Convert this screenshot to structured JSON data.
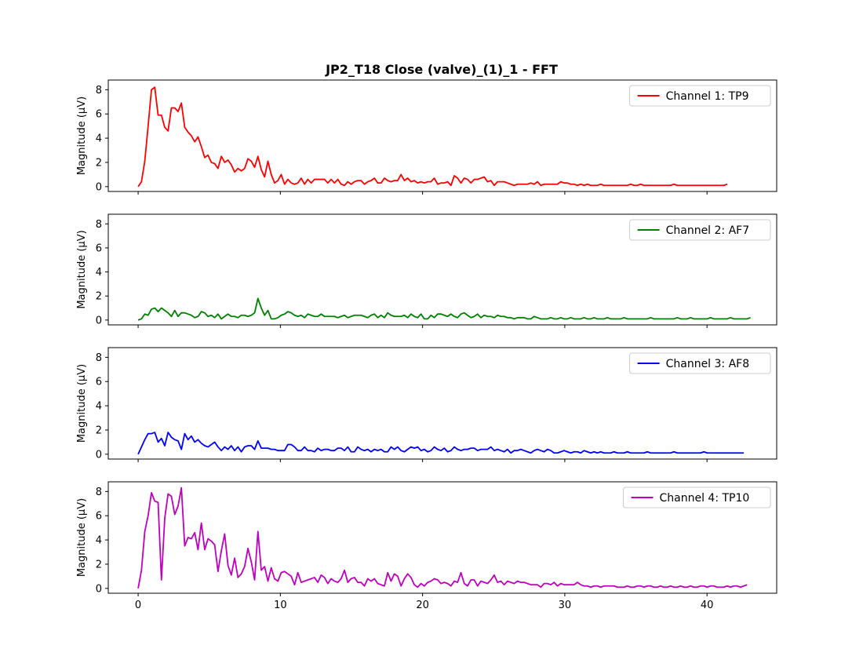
{
  "chart_data": {
    "type": "line",
    "title": "JP2_T18 Close (valve)_(1)_1 - FFT",
    "shared_x": true,
    "xlim": [
      -2.1,
      44.9
    ],
    "ylim": [
      -0.4,
      8.8
    ],
    "x_ticks": [
      0,
      10,
      20,
      30,
      40
    ],
    "y_ticks": [
      0,
      2,
      4,
      6,
      8
    ],
    "grid": false,
    "legend_position": "upper right",
    "x_step": 0.234,
    "panels": [
      {
        "ylabel": "Magnitude (μV)",
        "series": [
          {
            "name": "Channel 1: TP9",
            "color": "#ff0000",
            "values": [
              0.0,
              0.4,
              2.1,
              5.0,
              8.0,
              8.2,
              5.9,
              5.9,
              4.9,
              4.6,
              6.5,
              6.5,
              6.2,
              6.9,
              4.9,
              4.5,
              4.2,
              3.7,
              4.1,
              3.3,
              2.4,
              2.6,
              2.0,
              1.9,
              1.5,
              2.5,
              2.0,
              2.2,
              1.8,
              1.2,
              1.5,
              1.3,
              1.5,
              2.3,
              2.1,
              1.6,
              2.5,
              1.4,
              0.8,
              2.1,
              1.0,
              0.3,
              0.5,
              1.0,
              0.2,
              0.6,
              0.3,
              0.2,
              0.3,
              0.7,
              0.2,
              0.6,
              0.3,
              0.6,
              0.6,
              0.6,
              0.6,
              0.3,
              0.6,
              0.3,
              0.6,
              0.2,
              0.1,
              0.4,
              0.2,
              0.4,
              0.5,
              0.5,
              0.2,
              0.4,
              0.5,
              0.7,
              0.3,
              0.3,
              0.7,
              0.5,
              0.4,
              0.5,
              0.5,
              1.0,
              0.5,
              0.7,
              0.4,
              0.5,
              0.3,
              0.4,
              0.3,
              0.4,
              0.4,
              0.7,
              0.2,
              0.3,
              0.3,
              0.4,
              0.1,
              0.9,
              0.7,
              0.3,
              0.7,
              0.6,
              0.3,
              0.6,
              0.6,
              0.7,
              0.8,
              0.4,
              0.5,
              0.1,
              0.4,
              0.4,
              0.4,
              0.3,
              0.2,
              0.1,
              0.2,
              0.2,
              0.2,
              0.2,
              0.3,
              0.2,
              0.4,
              0.1,
              0.2,
              0.2,
              0.2,
              0.2,
              0.2,
              0.4,
              0.3,
              0.3,
              0.2,
              0.2,
              0.1,
              0.2,
              0.1,
              0.2,
              0.1,
              0.1,
              0.1,
              0.2,
              0.1,
              0.1,
              0.1,
              0.1,
              0.1,
              0.1,
              0.1,
              0.1,
              0.2,
              0.1,
              0.1,
              0.2,
              0.1,
              0.1,
              0.1,
              0.1,
              0.1,
              0.1,
              0.1,
              0.1,
              0.1,
              0.2,
              0.1,
              0.1,
              0.1,
              0.1,
              0.1,
              0.1,
              0.1,
              0.1,
              0.1,
              0.1,
              0.1,
              0.1,
              0.1,
              0.1,
              0.1,
              0.2
            ]
          }
        ]
      },
      {
        "ylabel": "Magnitude (μV)",
        "series": [
          {
            "name": "Channel 2: AF7",
            "color": "#008000",
            "values": [
              0.0,
              0.1,
              0.5,
              0.4,
              0.9,
              1.0,
              0.7,
              1.0,
              0.8,
              0.6,
              0.3,
              0.8,
              0.3,
              0.6,
              0.6,
              0.5,
              0.4,
              0.2,
              0.3,
              0.7,
              0.6,
              0.3,
              0.4,
              0.2,
              0.5,
              0.1,
              0.3,
              0.5,
              0.3,
              0.3,
              0.2,
              0.4,
              0.4,
              0.3,
              0.4,
              0.6,
              1.8,
              1.0,
              0.4,
              0.8,
              0.1,
              0.1,
              0.2,
              0.4,
              0.5,
              0.7,
              0.6,
              0.4,
              0.3,
              0.4,
              0.2,
              0.5,
              0.4,
              0.3,
              0.3,
              0.5,
              0.3,
              0.3,
              0.3,
              0.3,
              0.2,
              0.3,
              0.4,
              0.2,
              0.3,
              0.4,
              0.4,
              0.4,
              0.3,
              0.2,
              0.4,
              0.5,
              0.2,
              0.4,
              0.2,
              0.6,
              0.4,
              0.3,
              0.3,
              0.3,
              0.4,
              0.2,
              0.5,
              0.3,
              0.2,
              0.5,
              0.1,
              0.1,
              0.4,
              0.2,
              0.5,
              0.5,
              0.4,
              0.3,
              0.5,
              0.3,
              0.2,
              0.5,
              0.6,
              0.4,
              0.2,
              0.3,
              0.5,
              0.2,
              0.4,
              0.3,
              0.3,
              0.2,
              0.4,
              0.3,
              0.3,
              0.2,
              0.2,
              0.1,
              0.2,
              0.2,
              0.2,
              0.1,
              0.1,
              0.3,
              0.2,
              0.1,
              0.1,
              0.1,
              0.2,
              0.1,
              0.1,
              0.2,
              0.1,
              0.1,
              0.2,
              0.1,
              0.1,
              0.1,
              0.2,
              0.1,
              0.1,
              0.2,
              0.1,
              0.1,
              0.1,
              0.2,
              0.1,
              0.1,
              0.1,
              0.1,
              0.2,
              0.1,
              0.1,
              0.1,
              0.1,
              0.1,
              0.1,
              0.1,
              0.2,
              0.1,
              0.1,
              0.1,
              0.1,
              0.1,
              0.1,
              0.1,
              0.2,
              0.1,
              0.1,
              0.1,
              0.2,
              0.1,
              0.1,
              0.1,
              0.1,
              0.1,
              0.2,
              0.1,
              0.1,
              0.1,
              0.1,
              0.1,
              0.2,
              0.1,
              0.1,
              0.1,
              0.1,
              0.1,
              0.2
            ]
          }
        ]
      },
      {
        "ylabel": "Magnitude (μV)",
        "series": [
          {
            "name": "Channel 3: AF8",
            "color": "#0000ff",
            "values": [
              0.0,
              0.6,
              1.2,
              1.7,
              1.7,
              1.8,
              1.0,
              1.3,
              0.7,
              1.8,
              1.4,
              1.2,
              1.1,
              0.4,
              1.7,
              1.2,
              1.5,
              1.0,
              1.2,
              0.9,
              0.7,
              0.6,
              0.8,
              1.0,
              0.6,
              0.3,
              0.6,
              0.4,
              0.7,
              0.3,
              0.6,
              0.2,
              0.6,
              0.7,
              0.7,
              0.4,
              1.1,
              0.5,
              0.5,
              0.5,
              0.4,
              0.4,
              0.3,
              0.3,
              0.3,
              0.8,
              0.8,
              0.6,
              0.3,
              0.3,
              0.6,
              0.3,
              0.3,
              0.2,
              0.5,
              0.3,
              0.4,
              0.4,
              0.3,
              0.3,
              0.5,
              0.5,
              0.3,
              0.6,
              0.2,
              0.2,
              0.6,
              0.4,
              0.3,
              0.4,
              0.2,
              0.4,
              0.3,
              0.4,
              0.2,
              0.2,
              0.6,
              0.4,
              0.6,
              0.3,
              0.2,
              0.4,
              0.6,
              0.5,
              0.6,
              0.3,
              0.4,
              0.2,
              0.3,
              0.6,
              0.4,
              0.3,
              0.5,
              0.2,
              0.3,
              0.6,
              0.4,
              0.3,
              0.4,
              0.4,
              0.5,
              0.5,
              0.3,
              0.4,
              0.4,
              0.4,
              0.6,
              0.3,
              0.4,
              0.3,
              0.2,
              0.4,
              0.1,
              0.3,
              0.3,
              0.4,
              0.3,
              0.2,
              0.1,
              0.3,
              0.4,
              0.3,
              0.2,
              0.4,
              0.3,
              0.1,
              0.1,
              0.2,
              0.3,
              0.2,
              0.1,
              0.2,
              0.2,
              0.1,
              0.3,
              0.2,
              0.1,
              0.2,
              0.1,
              0.2,
              0.1,
              0.1,
              0.1,
              0.2,
              0.1,
              0.1,
              0.1,
              0.2,
              0.1,
              0.1,
              0.1,
              0.1,
              0.1,
              0.2,
              0.1,
              0.1,
              0.1,
              0.1,
              0.1,
              0.1,
              0.1,
              0.2,
              0.1,
              0.1,
              0.1,
              0.1,
              0.1,
              0.1,
              0.1,
              0.1,
              0.2,
              0.1,
              0.1,
              0.1,
              0.1,
              0.1,
              0.1,
              0.1,
              0.1,
              0.1,
              0.1,
              0.1,
              0.1
            ]
          }
        ]
      },
      {
        "ylabel": "Magnitude (μV)",
        "series": [
          {
            "name": "Channel 4: TP10",
            "color": "#bf00bf",
            "values": [
              0.0,
              1.5,
              4.7,
              6.0,
              7.9,
              7.2,
              7.1,
              0.7,
              5.8,
              7.8,
              7.6,
              6.1,
              6.8,
              8.3,
              3.5,
              4.2,
              4.1,
              4.6,
              3.2,
              5.4,
              3.2,
              4.1,
              3.9,
              3.6,
              1.4,
              3.1,
              4.5,
              1.9,
              1.1,
              2.5,
              0.9,
              1.2,
              1.8,
              3.3,
              2.2,
              0.7,
              4.7,
              1.5,
              1.8,
              0.6,
              1.7,
              0.8,
              0.6,
              1.3,
              1.4,
              1.2,
              1.0,
              0.3,
              1.3,
              0.5,
              0.6,
              0.7,
              0.8,
              0.9,
              0.5,
              1.1,
              0.9,
              0.4,
              0.8,
              0.6,
              0.5,
              0.8,
              1.5,
              0.5,
              0.8,
              0.9,
              0.5,
              0.5,
              0.2,
              0.8,
              0.6,
              0.8,
              0.4,
              0.3,
              0.2,
              1.3,
              0.6,
              1.2,
              1.0,
              0.2,
              0.8,
              1.2,
              0.9,
              0.3,
              0.1,
              0.4,
              0.2,
              0.5,
              0.6,
              0.8,
              0.7,
              0.4,
              0.5,
              0.4,
              0.2,
              0.6,
              0.5,
              1.3,
              0.4,
              0.2,
              0.7,
              0.7,
              0.2,
              0.6,
              0.5,
              0.4,
              0.7,
              1.1,
              0.5,
              0.6,
              0.3,
              0.6,
              0.5,
              0.4,
              0.6,
              0.5,
              0.5,
              0.4,
              0.3,
              0.3,
              0.3,
              0.1,
              0.4,
              0.4,
              0.3,
              0.5,
              0.2,
              0.4,
              0.3,
              0.3,
              0.3,
              0.3,
              0.5,
              0.3,
              0.2,
              0.2,
              0.1,
              0.2,
              0.2,
              0.1,
              0.2,
              0.2,
              0.2,
              0.2,
              0.1,
              0.1,
              0.1,
              0.2,
              0.1,
              0.1,
              0.2,
              0.2,
              0.1,
              0.2,
              0.2,
              0.1,
              0.1,
              0.2,
              0.1,
              0.1,
              0.2,
              0.1,
              0.1,
              0.2,
              0.1,
              0.1,
              0.2,
              0.1,
              0.1,
              0.2,
              0.2,
              0.1,
              0.2,
              0.2,
              0.1,
              0.1,
              0.1,
              0.2,
              0.1,
              0.2,
              0.2,
              0.1,
              0.2,
              0.3
            ]
          }
        ]
      }
    ]
  }
}
